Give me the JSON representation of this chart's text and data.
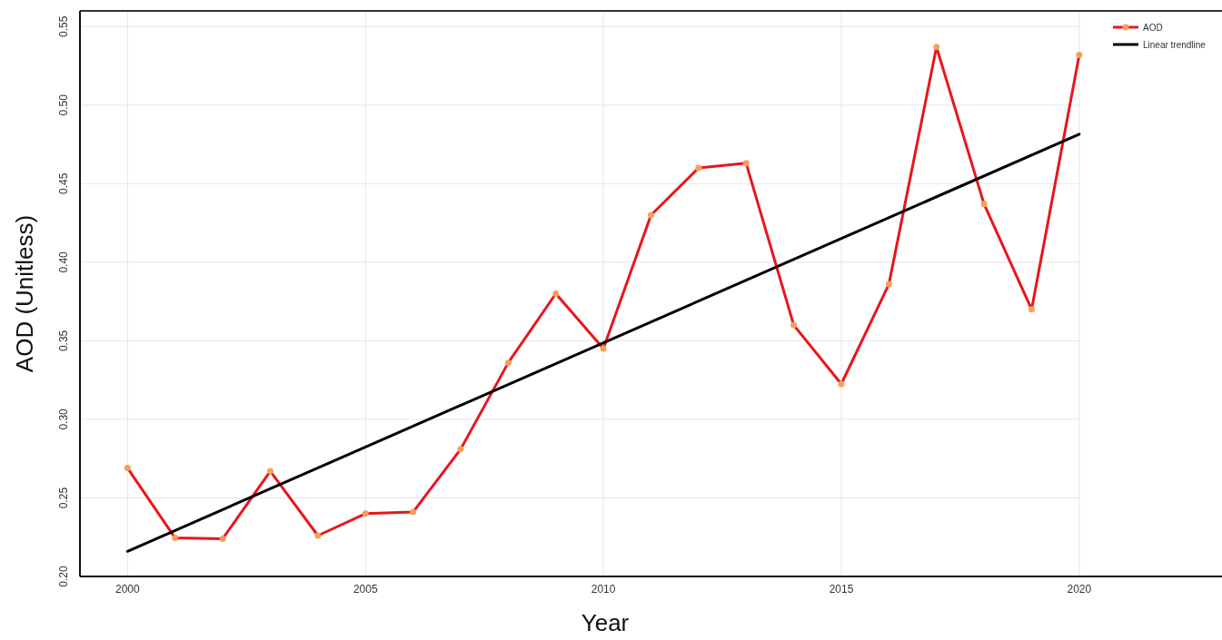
{
  "chart_data": {
    "type": "line",
    "xlabel": "Year",
    "ylabel": "AOD (Unitless)",
    "xlim": [
      1999,
      2023
    ],
    "ylim": [
      0.2,
      0.56
    ],
    "xticks": [
      2000,
      2005,
      2010,
      2015,
      2020
    ],
    "yticks": [
      {
        "value": 0.2,
        "label": "0.20"
      },
      {
        "value": 0.25,
        "label": "0.25"
      },
      {
        "value": 0.3,
        "label": "0.30"
      },
      {
        "value": 0.35,
        "label": "0.35"
      },
      {
        "value": 0.4,
        "label": "0.40"
      },
      {
        "value": 0.45,
        "label": "0.45"
      },
      {
        "value": 0.5,
        "label": "0.50"
      },
      {
        "value": 0.55,
        "label": "0.55"
      }
    ],
    "grid": true,
    "legend": "top right",
    "series": [
      {
        "name": "AOD",
        "color": "#e8161c",
        "marker": "circle",
        "x": [
          2000,
          2001,
          2002,
          2003,
          2004,
          2005,
          2006,
          2007,
          2008,
          2009,
          2010,
          2011,
          2012,
          2013,
          2014,
          2015,
          2016,
          2017,
          2018,
          2019,
          2020
        ],
        "values": [
          0.269,
          0.2245,
          0.224,
          0.267,
          0.226,
          0.24,
          0.241,
          0.281,
          0.336,
          0.38,
          0.345,
          0.43,
          0.46,
          0.463,
          0.36,
          0.3225,
          0.386,
          0.537,
          0.437,
          0.37,
          0.532
        ]
      },
      {
        "name": "Linear trendline",
        "color": "#000000",
        "marker": "none",
        "x": [
          2000,
          2020
        ],
        "values": [
          0.216,
          0.4815
        ]
      }
    ]
  }
}
